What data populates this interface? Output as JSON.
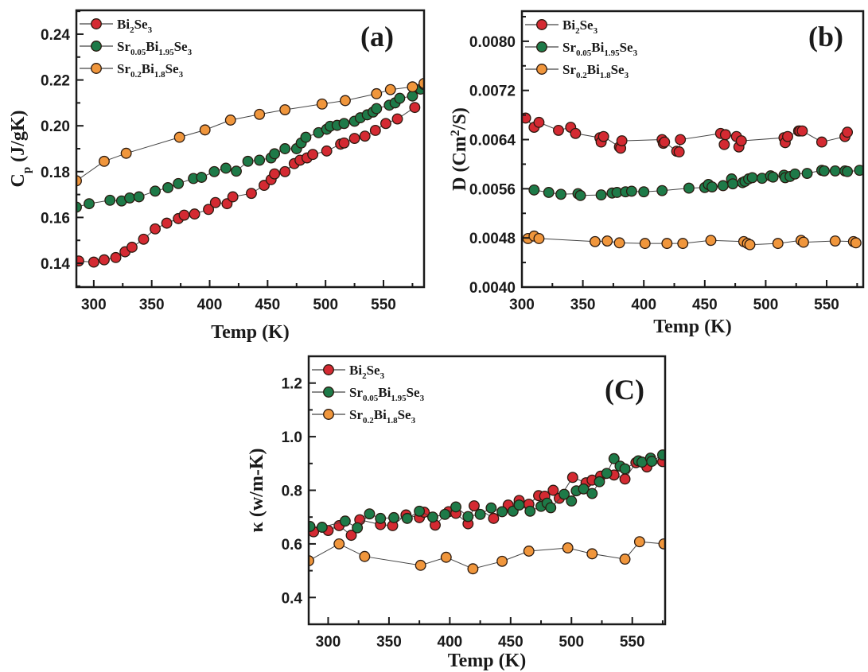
{
  "chart_data": [
    {
      "id": "a",
      "type": "scatter",
      "panel_label": "(a)",
      "title": "",
      "xlabel": "Temp (K)",
      "ylabel": "C_p (J/gK)",
      "ylabel_parts": {
        "main": "C",
        "sub": "p",
        "rest": " (J/gK)"
      },
      "xlim": [
        285,
        585
      ],
      "ylim": [
        0.1296,
        0.2504
      ],
      "xticks": [
        300,
        350,
        400,
        450,
        500,
        550
      ],
      "xtick_labels": [
        "300",
        "350",
        "400",
        "450",
        "500",
        "550"
      ],
      "yticks": [
        0.14,
        0.16,
        0.18,
        0.2,
        0.22,
        0.24
      ],
      "ytick_labels": [
        "0.14",
        "0.16",
        "0.18",
        "0.20",
        "0.22",
        "0.24"
      ],
      "grid": false,
      "legend": "top-left",
      "series": [
        {
          "name": "Bi2Se3",
          "label_parts": [
            [
              "Bi",
              ""
            ],
            [
              "2",
              "sub"
            ],
            [
              "Se",
              ""
            ],
            [
              "3",
              "sub"
            ]
          ],
          "color": "#d42a32",
          "x": [
            287,
            300,
            309,
            319,
            327,
            333,
            343,
            353,
            363,
            373,
            378,
            387,
            399,
            405,
            415,
            420,
            436,
            447,
            453,
            456,
            465,
            473,
            478,
            484,
            489,
            501,
            513,
            516,
            525,
            534,
            543,
            552,
            562,
            577
          ],
          "y": [
            0.141,
            0.1405,
            0.1415,
            0.1425,
            0.145,
            0.147,
            0.1505,
            0.155,
            0.1575,
            0.1595,
            0.161,
            0.1615,
            0.1635,
            0.1665,
            0.166,
            0.169,
            0.1705,
            0.174,
            0.1765,
            0.179,
            0.18,
            0.1835,
            0.185,
            0.186,
            0.1875,
            0.189,
            0.192,
            0.1925,
            0.1945,
            0.1955,
            0.198,
            0.201,
            0.203,
            0.208
          ]
        },
        {
          "name": "Sr0.05Bi1.95Se3",
          "label_parts": [
            [
              "Sr",
              ""
            ],
            [
              "0.05",
              "sub"
            ],
            [
              "Bi",
              ""
            ],
            [
              "1.95",
              "sub"
            ],
            [
              "Se",
              ""
            ],
            [
              "3",
              "sub"
            ]
          ],
          "color": "#1e7a48",
          "x": [
            285,
            296,
            314,
            324,
            331,
            339,
            353,
            364,
            373,
            386,
            393,
            404,
            414,
            423,
            433,
            443,
            453,
            456,
            465,
            475,
            479,
            483,
            494,
            501,
            504,
            510,
            516,
            525,
            530,
            536,
            541,
            544,
            555,
            560,
            564,
            575,
            582,
            585
          ],
          "y": [
            0.1645,
            0.166,
            0.1675,
            0.1672,
            0.1685,
            0.169,
            0.1715,
            0.173,
            0.1748,
            0.177,
            0.1775,
            0.18,
            0.1815,
            0.1802,
            0.1845,
            0.185,
            0.186,
            0.1878,
            0.19,
            0.19,
            0.1925,
            0.195,
            0.197,
            0.1985,
            0.1998,
            0.2002,
            0.201,
            0.202,
            0.2035,
            0.2048,
            0.206,
            0.2075,
            0.209,
            0.21,
            0.212,
            0.213,
            0.216,
            0.218
          ]
        },
        {
          "name": "Sr0.2Bi1.8Se3",
          "label_parts": [
            [
              "Sr",
              ""
            ],
            [
              "0.2",
              "sub"
            ],
            [
              "Bi",
              ""
            ],
            [
              "1.8",
              "sub"
            ],
            [
              "Se",
              ""
            ],
            [
              "3",
              "sub"
            ]
          ],
          "color": "#f0963c",
          "x": [
            285,
            309,
            328,
            374,
            396,
            418,
            443,
            465,
            497,
            517,
            544,
            556,
            575,
            585
          ],
          "y": [
            0.176,
            0.1845,
            0.188,
            0.195,
            0.1982,
            0.2025,
            0.205,
            0.207,
            0.2095,
            0.211,
            0.214,
            0.2158,
            0.217,
            0.2185
          ]
        }
      ]
    },
    {
      "id": "b",
      "type": "scatter",
      "panel_label": "(b)",
      "title": "",
      "xlabel": "Temp (K)",
      "ylabel": "D (Cm2/S)",
      "ylabel_parts": {
        "main": "D (Cm",
        "sup": "2",
        "rest": "/S)"
      },
      "xlim": [
        300,
        580
      ],
      "ylim": [
        0.004,
        0.00849
      ],
      "xticks": [
        300,
        350,
        400,
        450,
        500,
        550
      ],
      "xtick_labels": [
        "300",
        "350",
        "400",
        "450",
        "500",
        "550"
      ],
      "yticks": [
        0.004,
        0.0048,
        0.0056,
        0.0064,
        0.0072,
        0.008
      ],
      "ytick_labels": [
        "0.0040",
        "0.0048",
        "0.0056",
        "0.0064",
        "0.0072",
        "0.0080"
      ],
      "grid": false,
      "legend": "top-left",
      "series": [
        {
          "name": "Bi2Se3",
          "label_parts": [
            [
              "Bi",
              ""
            ],
            [
              "2",
              "sub"
            ],
            [
              "Se",
              ""
            ],
            [
              "3",
              "sub"
            ]
          ],
          "color": "#d42a32",
          "x": [
            303,
            310,
            314,
            330,
            340,
            344,
            364,
            365,
            367,
            380,
            381,
            382,
            415,
            416,
            417,
            427,
            429,
            430,
            463,
            466,
            467,
            476,
            478,
            480,
            515,
            516,
            518,
            527,
            528,
            530,
            546,
            565,
            567
          ],
          "y": [
            0.00675,
            0.0066,
            0.00668,
            0.00655,
            0.0066,
            0.0065,
            0.00643,
            0.00636,
            0.00645,
            0.00628,
            0.00626,
            0.00638,
            0.0064,
            0.00634,
            0.00636,
            0.00621,
            0.0062,
            0.0064,
            0.0065,
            0.00632,
            0.00648,
            0.00645,
            0.00628,
            0.00638,
            0.00643,
            0.00635,
            0.00645,
            0.00654,
            0.00654,
            0.00654,
            0.00636,
            0.00645,
            0.00652
          ]
        },
        {
          "name": "Sr0.05Bi1.95Se3",
          "label_parts": [
            [
              "Sr",
              ""
            ],
            [
              "0.05",
              "sub"
            ],
            [
              "Bi",
              ""
            ],
            [
              "1.95",
              "sub"
            ],
            [
              "Se",
              ""
            ],
            [
              "3",
              "sub"
            ]
          ],
          "color": "#1e7a48",
          "x": [
            310,
            322,
            332,
            346,
            348,
            365,
            374,
            378,
            385,
            390,
            400,
            415,
            437,
            450,
            453,
            456,
            465,
            472,
            473,
            481,
            483,
            486,
            489,
            497,
            504,
            506,
            515,
            516,
            520,
            524,
            534,
            546,
            548,
            557,
            565,
            567,
            577
          ],
          "y": [
            0.00558,
            0.00554,
            0.00551,
            0.00552,
            0.00549,
            0.0055,
            0.00553,
            0.00554,
            0.00555,
            0.00556,
            0.00555,
            0.00557,
            0.00561,
            0.00562,
            0.00567,
            0.00563,
            0.00565,
            0.00576,
            0.00568,
            0.0057,
            0.00572,
            0.00576,
            0.00578,
            0.00577,
            0.00581,
            0.00579,
            0.00582,
            0.00578,
            0.0058,
            0.00584,
            0.00585,
            0.0059,
            0.00589,
            0.00589,
            0.00589,
            0.00588,
            0.0059
          ]
        },
        {
          "name": "Sr0.2Bi1.8Se3",
          "label_parts": [
            [
              "Sr",
              ""
            ],
            [
              "0.2",
              "sub"
            ],
            [
              "Bi",
              ""
            ],
            [
              "1.8",
              "sub"
            ],
            [
              "Se",
              ""
            ],
            [
              "3",
              "sub"
            ]
          ],
          "color": "#f0963c",
          "x": [
            305,
            310,
            314,
            360,
            370,
            380,
            401,
            419,
            432,
            455,
            482,
            485,
            487,
            510,
            529,
            531,
            557,
            572,
            574
          ],
          "y": [
            0.00479,
            0.00483,
            0.00479,
            0.00474,
            0.00475,
            0.00472,
            0.00471,
            0.00471,
            0.00471,
            0.00476,
            0.00474,
            0.00471,
            0.00469,
            0.00471,
            0.00476,
            0.00473,
            0.00475,
            0.00474,
            0.00472
          ]
        }
      ]
    },
    {
      "id": "c",
      "type": "scatter",
      "panel_label": "(C)",
      "title": "",
      "xlabel": "Temp (K)",
      "ylabel": "κ (w/m-K)",
      "ylabel_parts": {
        "main": "κ (w/m-K)"
      },
      "xlim": [
        284,
        577
      ],
      "ylim": [
        0.3,
        1.3
      ],
      "xticks": [
        300,
        350,
        400,
        450,
        500,
        550
      ],
      "xtick_labels": [
        "300",
        "350",
        "400",
        "450",
        "500",
        "550"
      ],
      "yticks": [
        0.4,
        0.6,
        0.8,
        1.0,
        1.2
      ],
      "ytick_labels": [
        "0.4",
        "0.6",
        "0.8",
        "1.0",
        "1.2"
      ],
      "grid": false,
      "legend": "top-left",
      "series": [
        {
          "name": "Bi2Se3",
          "label_parts": [
            [
              "Bi",
              ""
            ],
            [
              "2",
              "sub"
            ],
            [
              "Se",
              ""
            ],
            [
              "3",
              "sub"
            ]
          ],
          "color": "#d42a32",
          "x": [
            288,
            300,
            309,
            319,
            326,
            343,
            353,
            364,
            375,
            379,
            388,
            399,
            405,
            415,
            420,
            436,
            448,
            457,
            465,
            473,
            478,
            485,
            490,
            501,
            512,
            517,
            524,
            535,
            544,
            553,
            562,
            575
          ],
          "y": [
            0.645,
            0.65,
            0.668,
            0.632,
            0.69,
            0.672,
            0.668,
            0.708,
            0.698,
            0.718,
            0.67,
            0.72,
            0.714,
            0.675,
            0.742,
            0.695,
            0.745,
            0.762,
            0.748,
            0.78,
            0.778,
            0.8,
            0.77,
            0.848,
            0.828,
            0.838,
            0.853,
            0.857,
            0.842,
            0.903,
            0.887,
            0.907
          ]
        },
        {
          "name": "Sr0.05Bi1.95Se3",
          "label_parts": [
            [
              "Sr",
              ""
            ],
            [
              "0.05",
              "sub"
            ],
            [
              "Bi",
              ""
            ],
            [
              "1.95",
              "sub"
            ],
            [
              "Se",
              ""
            ],
            [
              "3",
              "sub"
            ]
          ],
          "color": "#1e7a48",
          "x": [
            285,
            295,
            314,
            324,
            334,
            343,
            354,
            365,
            375,
            386,
            396,
            405,
            415,
            425,
            434,
            443,
            452,
            457,
            466,
            475,
            480,
            483,
            494,
            500,
            504,
            510,
            517,
            523,
            529,
            535,
            540,
            544,
            555,
            558,
            565,
            566,
            575
          ],
          "y": [
            0.665,
            0.662,
            0.685,
            0.66,
            0.712,
            0.695,
            0.698,
            0.695,
            0.722,
            0.7,
            0.71,
            0.738,
            0.702,
            0.71,
            0.734,
            0.72,
            0.722,
            0.745,
            0.722,
            0.74,
            0.752,
            0.735,
            0.785,
            0.76,
            0.798,
            0.805,
            0.788,
            0.832,
            0.863,
            0.918,
            0.89,
            0.88,
            0.91,
            0.905,
            0.92,
            0.908,
            0.932
          ]
        },
        {
          "name": "Sr0.2Bi1.8Se3",
          "label_parts": [
            [
              "Sr",
              ""
            ],
            [
              "0.2",
              "sub"
            ],
            [
              "Bi",
              ""
            ],
            [
              "1.8",
              "sub"
            ],
            [
              "Se",
              ""
            ],
            [
              "3",
              "sub"
            ]
          ],
          "color": "#f0963c",
          "x": [
            284,
            309,
            330,
            376,
            397,
            419,
            443,
            465,
            497,
            517,
            544,
            556,
            576
          ],
          "y": [
            0.537,
            0.6,
            0.553,
            0.52,
            0.55,
            0.507,
            0.535,
            0.573,
            0.585,
            0.563,
            0.543,
            0.608,
            0.6
          ]
        }
      ]
    }
  ]
}
